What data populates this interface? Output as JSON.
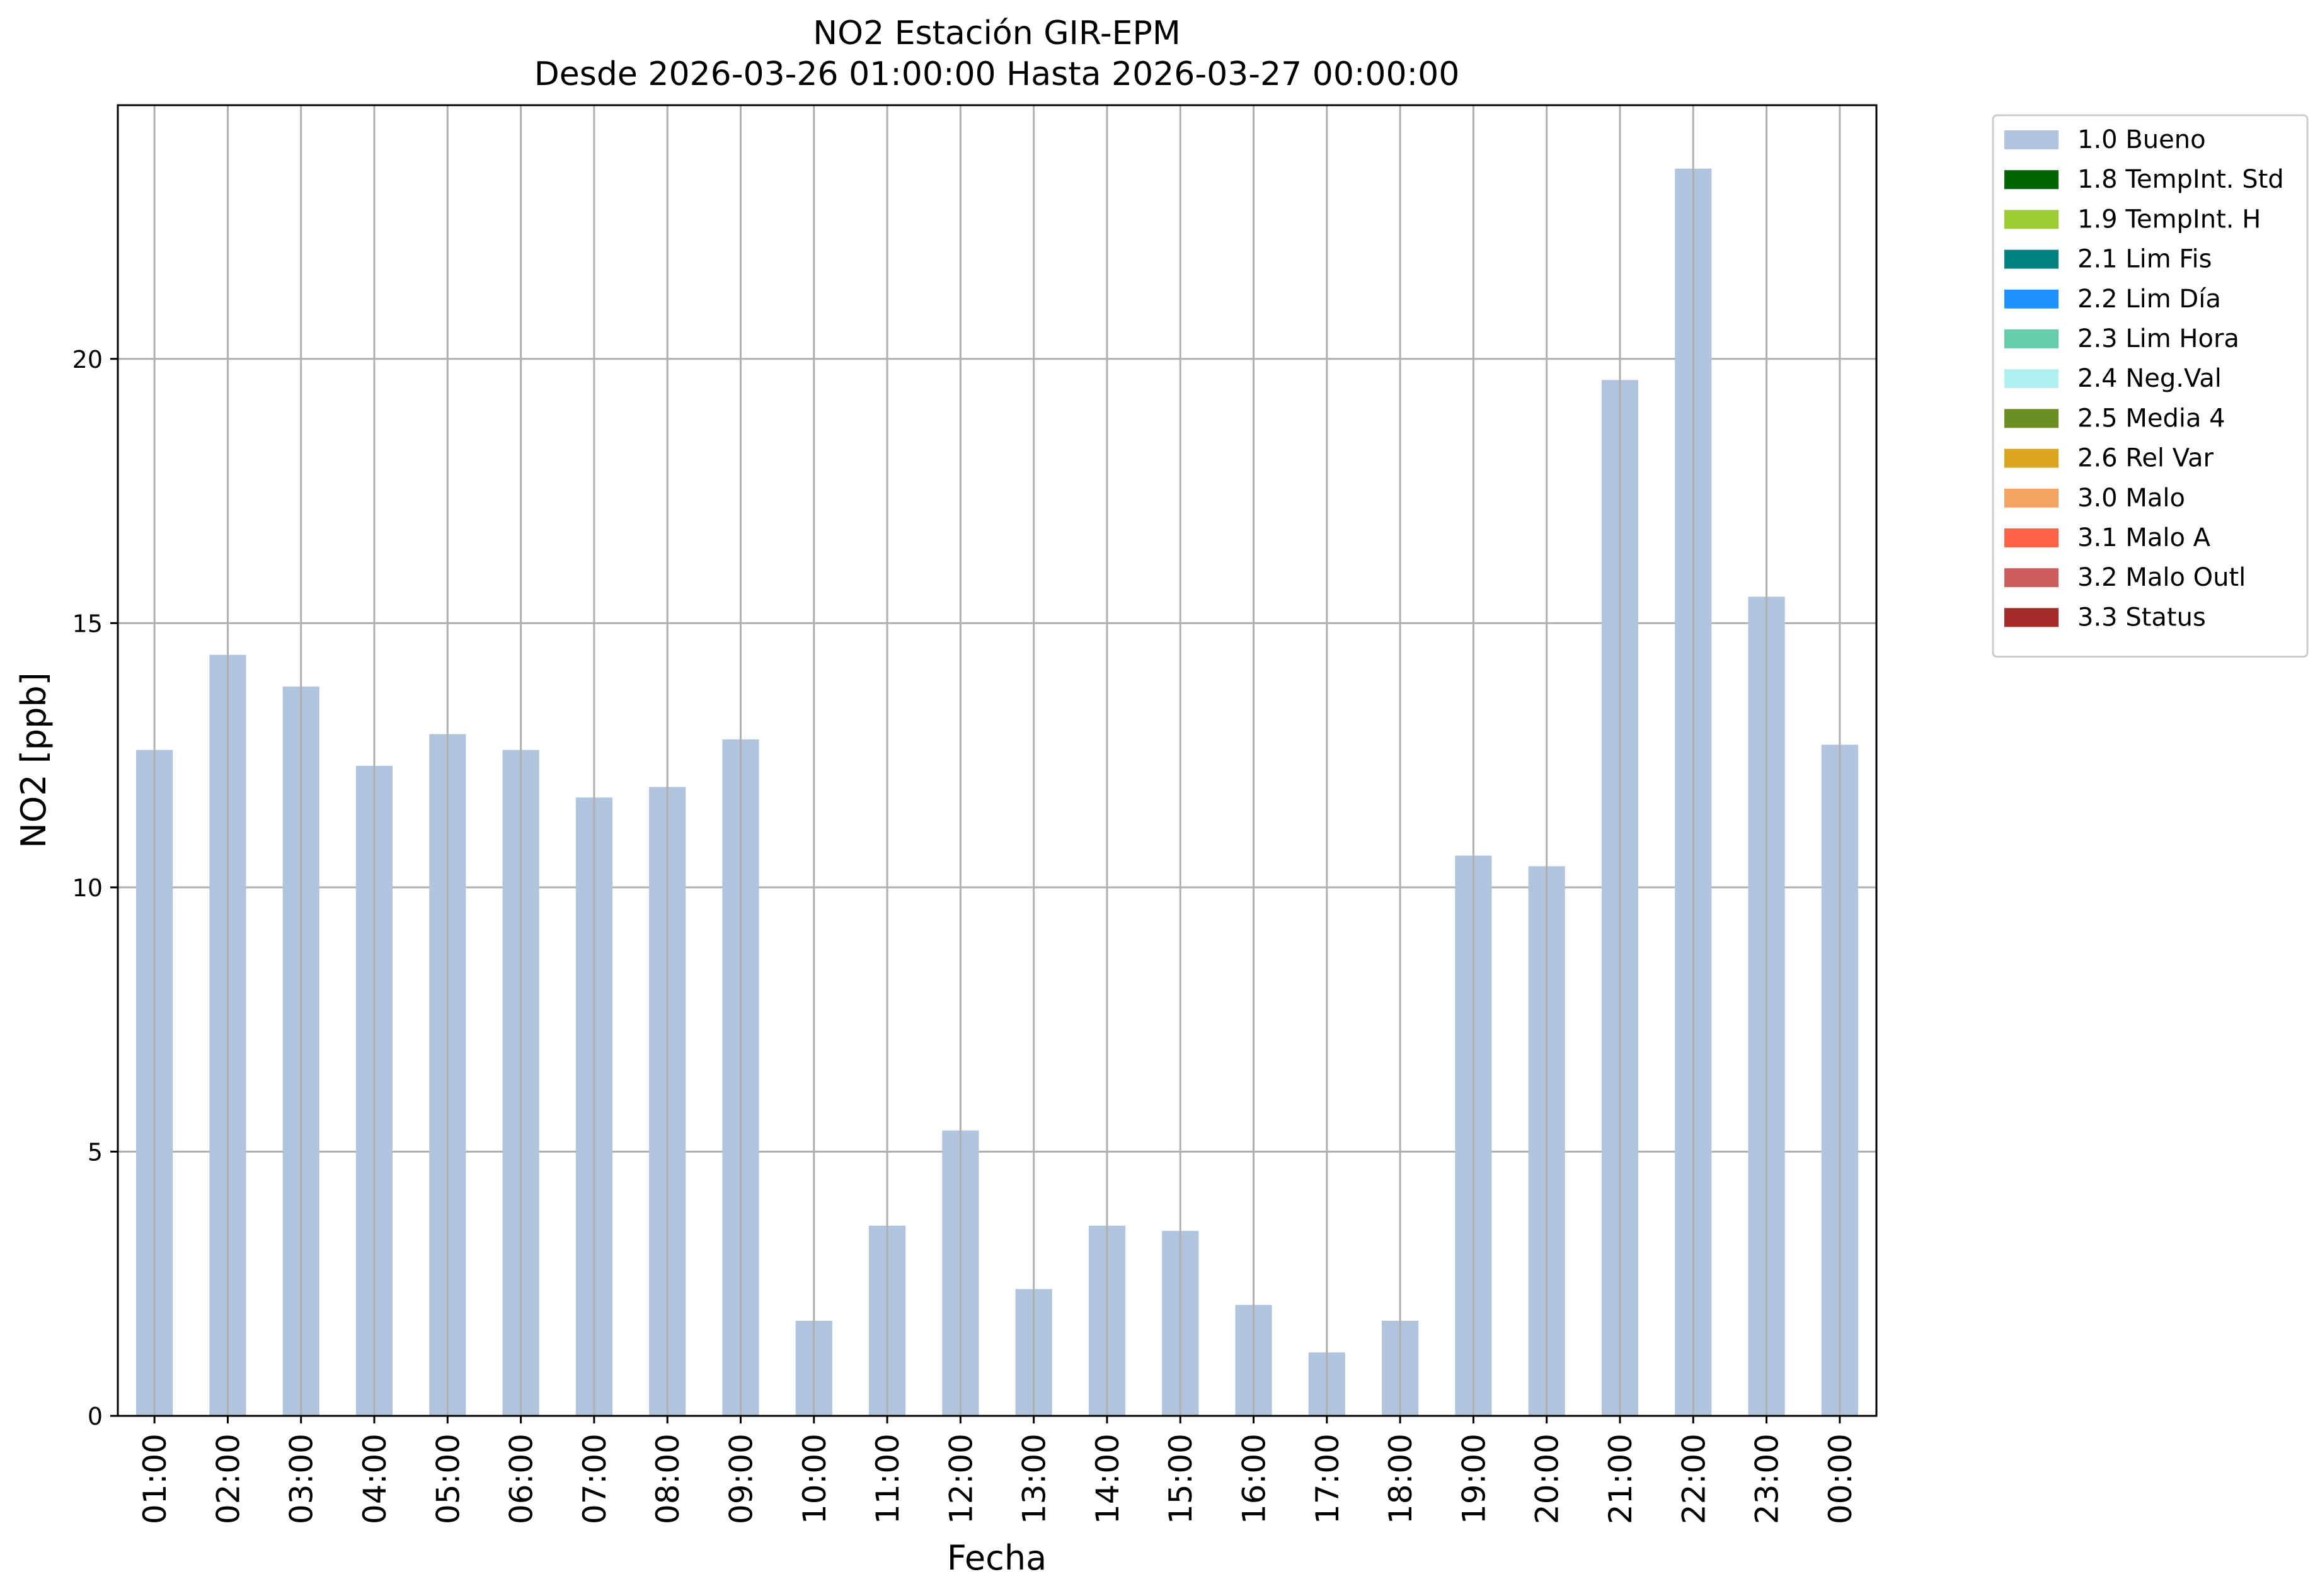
{
  "chart_data": {
    "type": "bar",
    "title": "NO2 Estación GIR-EPM",
    "subtitle": "Desde 2026-03-26 01:00:00 Hasta 2026-03-27 00:00:00",
    "xlabel": "Fecha",
    "ylabel": "NO2 [ppb]",
    "ylim": [
      0,
      24.8
    ],
    "yticks": [
      0,
      5,
      10,
      15,
      20
    ],
    "grid": true,
    "legend_position": "outside-top-right",
    "categories": [
      "01:00",
      "02:00",
      "03:00",
      "04:00",
      "05:00",
      "06:00",
      "07:00",
      "08:00",
      "09:00",
      "10:00",
      "11:00",
      "12:00",
      "13:00",
      "14:00",
      "15:00",
      "16:00",
      "17:00",
      "18:00",
      "19:00",
      "20:00",
      "21:00",
      "22:00",
      "23:00",
      "00:00"
    ],
    "series": [
      {
        "name": "1.0 Bueno",
        "color": "#b0c4de",
        "values": [
          12.6,
          14.4,
          13.8,
          12.3,
          12.9,
          12.6,
          11.7,
          11.9,
          12.8,
          1.8,
          3.6,
          5.4,
          2.4,
          3.6,
          3.5,
          2.1,
          1.2,
          1.8,
          10.6,
          10.4,
          19.6,
          23.6,
          15.5,
          12.7
        ]
      }
    ],
    "legend": [
      {
        "label": "1.0 Bueno",
        "color": "#b0c4de"
      },
      {
        "label": "1.8 TempInt. Std",
        "color": "#006400"
      },
      {
        "label": "1.9 TempInt. H",
        "color": "#9acd32"
      },
      {
        "label": "2.1 Lim Fis",
        "color": "#008080"
      },
      {
        "label": "2.2 Lim Día",
        "color": "#1e90ff"
      },
      {
        "label": "2.3 Lim Hora",
        "color": "#66cdaa"
      },
      {
        "label": "2.4 Neg.Val",
        "color": "#afeeee"
      },
      {
        "label": "2.5 Media 4",
        "color": "#6b8e23"
      },
      {
        "label": "2.6 Rel Var",
        "color": "#daa520"
      },
      {
        "label": "3.0 Malo",
        "color": "#f4a460"
      },
      {
        "label": "3.1 Malo A",
        "color": "#ff6347"
      },
      {
        "label": "3.2 Malo Outl",
        "color": "#cd5c5c"
      },
      {
        "label": "3.3 Status",
        "color": "#a52a2a"
      }
    ]
  }
}
